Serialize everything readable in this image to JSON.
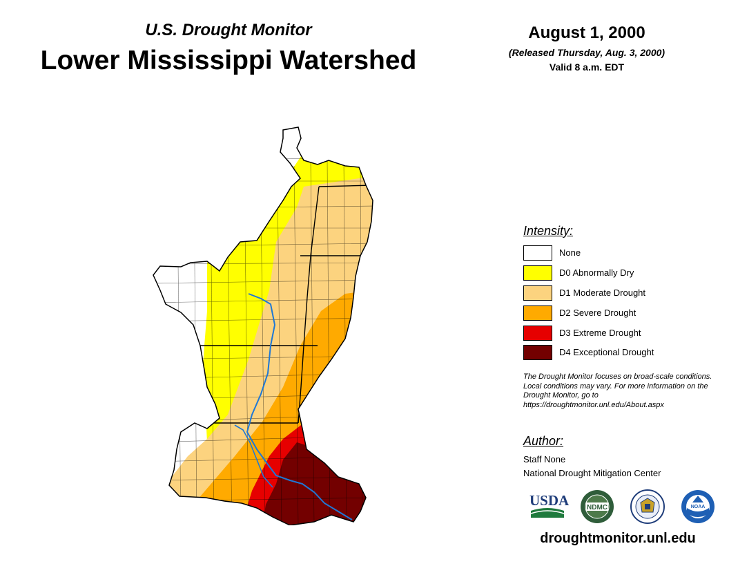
{
  "header": {
    "subtitle": "U.S. Drought Monitor",
    "title": "Lower Mississippi Watershed",
    "date": "August 1, 2000",
    "released": "(Released Thursday, Aug. 3, 2000)",
    "valid": "Valid 8 a.m. EDT"
  },
  "legend": {
    "heading": "Intensity:",
    "items": [
      {
        "label": "None",
        "color": "#ffffff"
      },
      {
        "label": "D0 Abnormally Dry",
        "color": "#ffff00"
      },
      {
        "label": "D1 Moderate Drought",
        "color": "#fcd37f"
      },
      {
        "label": "D2 Severe Drought",
        "color": "#ffaa00"
      },
      {
        "label": "D3 Extreme Drought",
        "color": "#e60000"
      },
      {
        "label": "D4 Exceptional Drought",
        "color": "#730000"
      }
    ]
  },
  "note": "The Drought Monitor focuses on broad-scale conditions. Local conditions may vary. For more information on the Drought Monitor, go to https://droughtmonitor.unl.edu/About.aspx",
  "author": {
    "heading": "Author:",
    "name": "Staff None",
    "org": "National Drought Mitigation Center"
  },
  "logos": [
    {
      "name": "usda-logo",
      "text": "USDA"
    },
    {
      "name": "ndmc-logo",
      "text": "NDMC"
    },
    {
      "name": "commerce-seal",
      "text": ""
    },
    {
      "name": "noaa-logo",
      "text": "NOAA"
    }
  ],
  "website": "droughtmonitor.unl.edu",
  "colors": {
    "river": "#1e78d6",
    "border": "#000000"
  }
}
